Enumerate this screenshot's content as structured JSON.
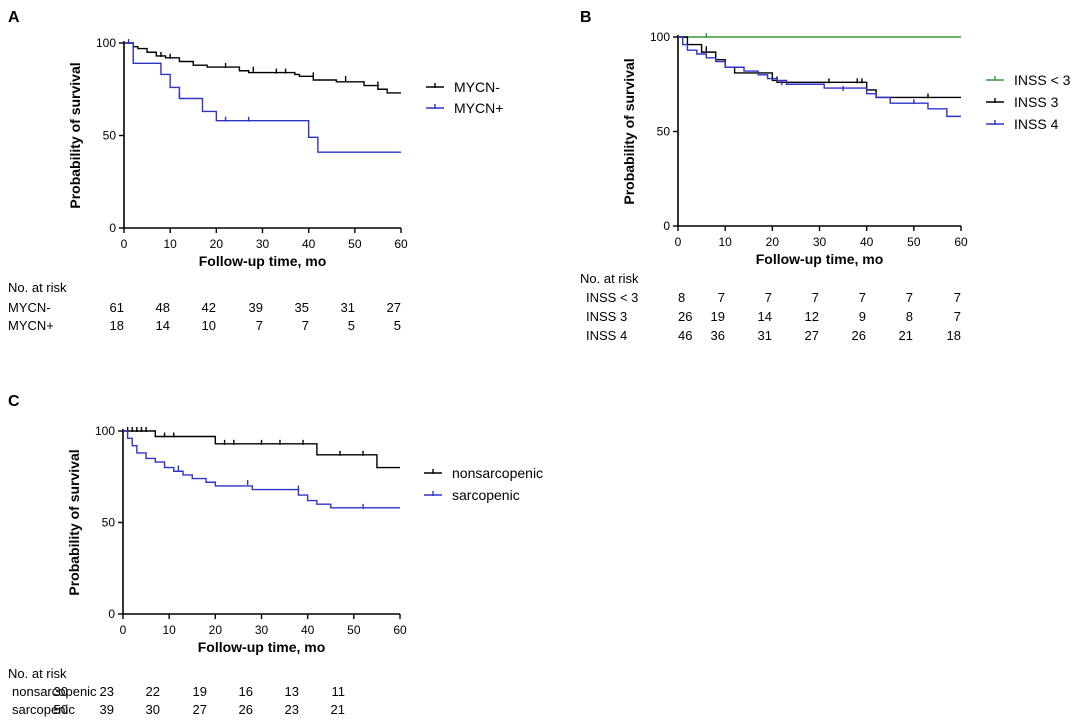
{
  "chart_data": [
    {
      "panel": "A",
      "type": "line",
      "subtype": "kaplan-meier",
      "xlabel": "Follow-up time, mo",
      "ylabel": "Probability of survival",
      "xlim": [
        0,
        60
      ],
      "ylim": [
        0,
        100
      ],
      "xticks": [
        0,
        10,
        20,
        30,
        40,
        50,
        60
      ],
      "yticks": [
        0,
        50,
        100
      ],
      "legend_position": "right",
      "series": [
        {
          "name": "MYCN-",
          "color": "#000000",
          "steps": [
            [
              0,
              100
            ],
            [
              2,
              98
            ],
            [
              3,
              97
            ],
            [
              5,
              95
            ],
            [
              7,
              93
            ],
            [
              9,
              92
            ],
            [
              12,
              90
            ],
            [
              15,
              88
            ],
            [
              18,
              87
            ],
            [
              25,
              85
            ],
            [
              27,
              84
            ],
            [
              37,
              83
            ],
            [
              38,
              82
            ],
            [
              41,
              80
            ],
            [
              46,
              79
            ],
            [
              52,
              77
            ],
            [
              55,
              75
            ],
            [
              57,
              73
            ],
            [
              60,
              73
            ]
          ],
          "censors": [
            [
              2,
              98
            ],
            [
              8,
              93
            ],
            [
              10,
              92
            ],
            [
              22,
              87
            ],
            [
              28,
              85
            ],
            [
              33,
              84
            ],
            [
              35,
              84
            ],
            [
              41,
              82
            ],
            [
              48,
              80
            ],
            [
              55,
              77
            ]
          ]
        },
        {
          "name": "MYCN+",
          "color": "#2f33c8",
          "steps": [
            [
              0,
              100
            ],
            [
              2,
              89
            ],
            [
              8,
              83
            ],
            [
              10,
              76
            ],
            [
              12,
              70
            ],
            [
              17,
              63
            ],
            [
              20,
              58
            ],
            [
              40,
              49
            ],
            [
              42,
              41
            ],
            [
              60,
              41
            ]
          ],
          "censors": [
            [
              1,
              100
            ],
            [
              12,
              71
            ],
            [
              22,
              58
            ],
            [
              27,
              58
            ]
          ]
        }
      ],
      "risk_table": {
        "header": "No. at risk",
        "rows": [
          {
            "label": "MYCN-",
            "values": [
              "61",
              "48",
              "42",
              "39",
              "35",
              "31",
              "27"
            ]
          },
          {
            "label": "MYCN+",
            "values": [
              "18",
              "14",
              "10",
              "7",
              "7",
              "5",
              "5"
            ]
          }
        ]
      }
    },
    {
      "panel": "B",
      "type": "line",
      "subtype": "kaplan-meier",
      "xlabel": "Follow-up time, mo",
      "ylabel": "Probability of survival",
      "xlim": [
        0,
        60
      ],
      "ylim": [
        0,
        100
      ],
      "xticks": [
        0,
        10,
        20,
        30,
        40,
        50,
        60
      ],
      "yticks": [
        0,
        50,
        100
      ],
      "legend_position": "right",
      "series": [
        {
          "name": "INSS < 3",
          "color": "#3a9a3a",
          "steps": [
            [
              0,
              100
            ],
            [
              60,
              100
            ]
          ],
          "censors": [
            [
              6,
              100
            ]
          ]
        },
        {
          "name": "INSS 3",
          "color": "#000000",
          "steps": [
            [
              0,
              100
            ],
            [
              2,
              96
            ],
            [
              5,
              92
            ],
            [
              8,
              88
            ],
            [
              10,
              84
            ],
            [
              12,
              81
            ],
            [
              20,
              77
            ],
            [
              21,
              76
            ],
            [
              40,
              72
            ],
            [
              42,
              68
            ],
            [
              60,
              68
            ]
          ],
          "censors": [
            [
              6,
              93
            ],
            [
              21,
              77
            ],
            [
              32,
              76
            ],
            [
              38,
              76
            ],
            [
              39,
              76
            ],
            [
              53,
              68
            ]
          ]
        },
        {
          "name": "INSS 4",
          "color": "#2f33c8",
          "steps": [
            [
              0,
              100
            ],
            [
              1,
              96
            ],
            [
              2,
              93
            ],
            [
              4,
              91
            ],
            [
              6,
              89
            ],
            [
              8,
              87
            ],
            [
              10,
              84
            ],
            [
              14,
              82
            ],
            [
              17,
              80
            ],
            [
              19,
              78
            ],
            [
              21,
              77
            ],
            [
              23,
              75
            ],
            [
              31,
              73
            ],
            [
              40,
              70
            ],
            [
              42,
              68
            ],
            [
              45,
              65
            ],
            [
              53,
              62
            ],
            [
              57,
              58
            ],
            [
              60,
              58
            ]
          ],
          "censors": [
            [
              22,
              75
            ],
            [
              35,
              72
            ],
            [
              50,
              65
            ]
          ]
        }
      ],
      "risk_table": {
        "header": "No. at risk",
        "rows": [
          {
            "label": "INSS < 3",
            "values": [
              "8",
              "7",
              "7",
              "7",
              "7",
              "7",
              "7"
            ]
          },
          {
            "label": "INSS 3",
            "values": [
              "26",
              "19",
              "14",
              "12",
              "9",
              "8",
              "7"
            ]
          },
          {
            "label": "INSS 4",
            "values": [
              "46",
              "36",
              "31",
              "27",
              "26",
              "21",
              "18"
            ]
          }
        ]
      }
    },
    {
      "panel": "C",
      "type": "line",
      "subtype": "kaplan-meier",
      "xlabel": "Follow-up time, mo",
      "ylabel": "Probability of survival",
      "xlim": [
        0,
        60
      ],
      "ylim": [
        0,
        100
      ],
      "xticks": [
        0,
        10,
        20,
        30,
        40,
        50,
        60
      ],
      "yticks": [
        0,
        50,
        100
      ],
      "legend_position": "right",
      "series": [
        {
          "name": "nonsarcopenic",
          "color": "#000000",
          "steps": [
            [
              0,
              100
            ],
            [
              7,
              97
            ],
            [
              20,
              93
            ],
            [
              42,
              87
            ],
            [
              55,
              80
            ],
            [
              60,
              80
            ]
          ],
          "censors": [
            [
              1,
              100
            ],
            [
              2,
              100
            ],
            [
              3,
              100
            ],
            [
              4,
              100
            ],
            [
              5,
              100
            ],
            [
              9,
              97
            ],
            [
              11,
              97
            ],
            [
              22,
              93
            ],
            [
              24,
              93
            ],
            [
              30,
              93
            ],
            [
              34,
              93
            ],
            [
              39,
              93
            ],
            [
              47,
              87
            ],
            [
              52,
              87
            ]
          ]
        },
        {
          "name": "sarcopenic",
          "color": "#2f33c8",
          "steps": [
            [
              0,
              100
            ],
            [
              1,
              96
            ],
            [
              2,
              92
            ],
            [
              3,
              88
            ],
            [
              5,
              85
            ],
            [
              7,
              83
            ],
            [
              9,
              80
            ],
            [
              11,
              78
            ],
            [
              13,
              76
            ],
            [
              15,
              74
            ],
            [
              18,
              72
            ],
            [
              20,
              70
            ],
            [
              28,
              68
            ],
            [
              38,
              65
            ],
            [
              40,
              62
            ],
            [
              42,
              60
            ],
            [
              45,
              58
            ],
            [
              60,
              58
            ]
          ],
          "censors": [
            [
              12,
              79
            ],
            [
              27,
              71
            ],
            [
              38,
              68
            ],
            [
              52,
              58
            ]
          ]
        }
      ],
      "risk_table": {
        "header": "No. at risk",
        "rows": [
          {
            "label": "nonsarcopenic",
            "values": [
              "30",
              "23",
              "22",
              "19",
              "16",
              "13",
              "11"
            ]
          },
          {
            "label": "sarcopenic",
            "values": [
              "50",
              "39",
              "30",
              "27",
              "26",
              "23",
              "21"
            ]
          }
        ]
      }
    }
  ]
}
